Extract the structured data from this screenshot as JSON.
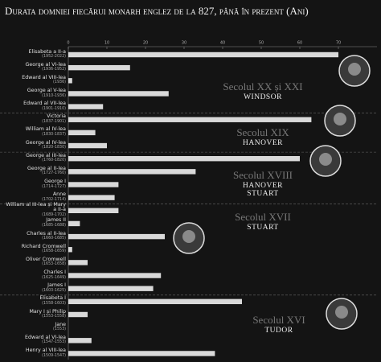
{
  "chart_data": {
    "type": "bar",
    "orientation": "horizontal",
    "title": "Durata domniei fiecărui monarh englez de la 827, până în prezent (Ani)",
    "categories": [
      "Elisabeta a II-a",
      "George al VI-lea",
      "Edward al VIII-lea",
      "George al V-lea",
      "Edward al VII-lea",
      "Victoria",
      "William al IV-lea",
      "George al IV-lea",
      "George al III-lea",
      "George al II-lea",
      "George I",
      "Anne",
      "William al III-lea și Mary a II-a",
      "James II",
      "Charles al II-lea",
      "Richard Cromwell",
      "Oliver Cromwell",
      "Charles I",
      "James I",
      "Elisabeta I",
      "Mary I și Philip",
      "Jane",
      "Edward al VI-lea",
      "Henry al VIII-lea"
    ],
    "periods": [
      "(1952-2022)",
      "(1936-1952)",
      "(1936)",
      "(1910-1936)",
      "(1901-1910)",
      "(1837-1901)",
      "(1830-1837)",
      "(1820-1830)",
      "(1760-1820)",
      "(1727-1760)",
      "(1714-1727)",
      "(1702-1714)",
      "(1689-1702)",
      "(1685-1688)",
      "(1660-1685)",
      "(1658-1659)",
      "(1653-1658)",
      "(1625-1649)",
      "(1603-1625)",
      "(1558-1603)",
      "(1553-1558)",
      "(1553)",
      "(1547-1553)",
      "(1509-1547)"
    ],
    "values": [
      70,
      16,
      1,
      26,
      9,
      63,
      7,
      10,
      60,
      33,
      13,
      12,
      13,
      3,
      25,
      1,
      5,
      24,
      22,
      45,
      5,
      0,
      6,
      38
    ],
    "color": "#d9d9d9",
    "xlim": [
      0,
      80
    ],
    "xticks": [
      0,
      10,
      20,
      30,
      40,
      50,
      60,
      70
    ],
    "groups": [
      {
        "label": "Secolul XX și XXI",
        "house": "WINDSOR"
      },
      {
        "label": "Secolul XIX",
        "house": "HANOVER"
      },
      {
        "label": "Secolul XVIII",
        "house": "HANOVER STUART"
      },
      {
        "label": "Secolul XVII",
        "house": "STUART"
      },
      {
        "label": "Secolul XVI",
        "house": "TUDOR"
      }
    ]
  }
}
